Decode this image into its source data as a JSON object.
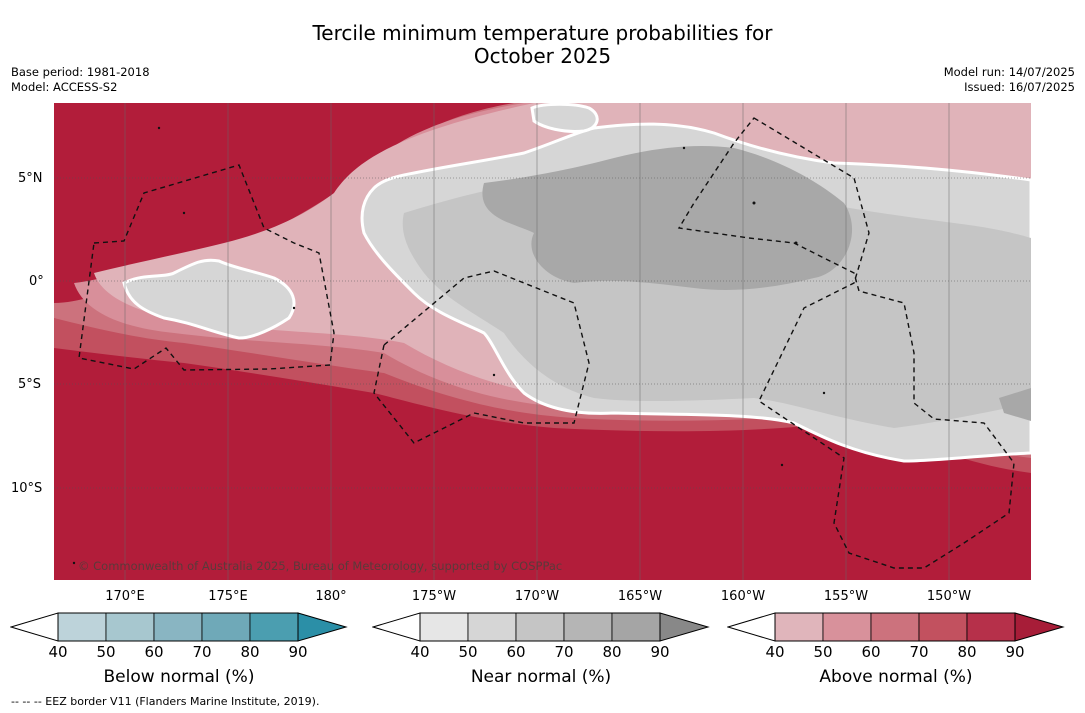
{
  "title_line1": "Tercile minimum temperature probabilities for",
  "title_line2": "October 2025",
  "meta": {
    "base_period": "Base period: 1981-2018",
    "model": "Model: ACCESS-S2",
    "model_run": "Model run: 14/07/2025",
    "issued": "Issued: 16/07/2025"
  },
  "lat_labels": [
    "5°N",
    "0°",
    "5°S",
    "10°S"
  ],
  "lon_labels": [
    "170°E",
    "175°E",
    "180°",
    "175°W",
    "170°W",
    "165°W",
    "160°W",
    "155°W",
    "150°W"
  ],
  "copyright": "© Commonwealth of Australia 2025, Bureau of Meteorology, supported by COSPPac",
  "colorbars": [
    {
      "label": "Below normal (%)",
      "ticks": [
        "40",
        "50",
        "60",
        "70",
        "80",
        "90"
      ],
      "colors": [
        "#bdd3da",
        "#a7c7cf",
        "#89b5c2",
        "#6fa9b8",
        "#4b9eb0",
        "#2b8fa7"
      ]
    },
    {
      "label": "Near normal (%)",
      "ticks": [
        "40",
        "50",
        "60",
        "70",
        "80",
        "90"
      ],
      "colors": [
        "#e6e6e6",
        "#d6d6d6",
        "#c5c5c5",
        "#b5b5b5",
        "#a5a5a5",
        "#888888"
      ]
    },
    {
      "label": "Above normal (%)",
      "ticks": [
        "40",
        "50",
        "60",
        "70",
        "80",
        "90"
      ],
      "colors": [
        "#e0b5bb",
        "#d8919b",
        "#cc727d",
        "#c2515f",
        "#b6304a",
        "#a71d38"
      ]
    }
  ],
  "footnote": "--  --  -- EEZ border V11 (Flanders Marine Institute, 2019)."
}
